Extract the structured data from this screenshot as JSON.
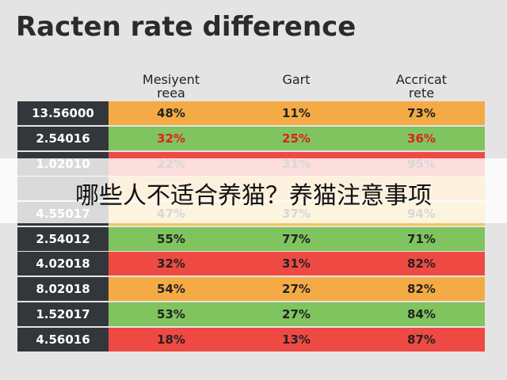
{
  "title": "Racten rate difference",
  "table": {
    "headers": [
      "Mesiyent\nreea",
      "Gart",
      "Accricat\nrete"
    ],
    "rows": [
      {
        "label": "13.56000",
        "cells": [
          "48%",
          "11%",
          "73%"
        ],
        "color": "#f5ab45"
      },
      {
        "label": "2.54016",
        "cells": [
          "32%",
          "25%",
          "36%"
        ],
        "color": "#7fc45f",
        "text_color": "#e02020"
      },
      {
        "label": "1.02010",
        "cells": [
          "22%",
          "31%",
          "95%"
        ],
        "color": "#ee4a43"
      },
      {
        "label": "4.55017",
        "cells": [
          "47%",
          "37%",
          "94%"
        ],
        "color": "#f5c456"
      },
      {
        "label": "2.54012",
        "cells": [
          "55%",
          "77%",
          "71%"
        ],
        "color": "#7fc45f"
      },
      {
        "label": "4.02018",
        "cells": [
          "32%",
          "31%",
          "82%"
        ],
        "color": "#ee4a43"
      },
      {
        "label": "8.02018",
        "cells": [
          "54%",
          "27%",
          "82%"
        ],
        "color": "#f5ab45"
      },
      {
        "label": "1.52017",
        "cells": [
          "53%",
          "27%",
          "84%"
        ],
        "color": "#7fc45f"
      },
      {
        "label": "4.56016",
        "cells": [
          "18%",
          "13%",
          "87%"
        ],
        "color": "#ee4a43"
      }
    ]
  },
  "banner": "哪些人不适合养猫？养猫注意事项"
}
